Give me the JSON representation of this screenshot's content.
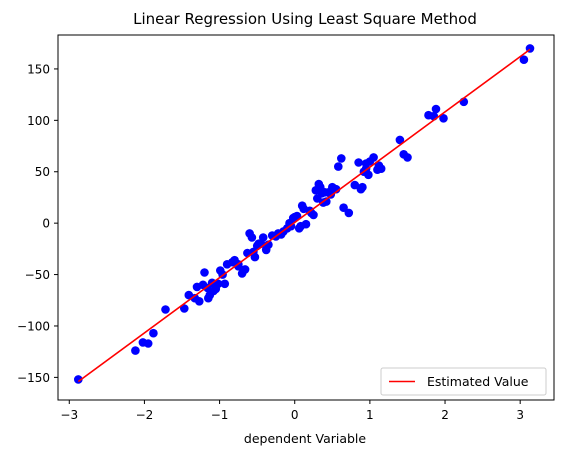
{
  "chart_data": {
    "type": "scatter",
    "title": "Linear Regression Using Least Square Method",
    "xlabel": "dependent Variable",
    "ylabel": "",
    "xlim": [
      -3.15,
      3.45
    ],
    "ylim": [
      -172,
      183
    ],
    "xticks": [
      -3,
      -2,
      -1,
      0,
      1,
      2,
      3
    ],
    "yticks": [
      -150,
      -100,
      -50,
      0,
      50,
      100,
      150
    ],
    "legend_position": "lower-right",
    "grid": false,
    "colors": {
      "points": "#0000ff",
      "line": "#ff0000"
    },
    "series": [
      {
        "kind": "points",
        "x": [
          -2.88,
          -2.12,
          -2.02,
          -1.95,
          -1.88,
          -1.72,
          -1.47,
          -1.41,
          -1.33,
          -1.3,
          -1.27,
          -1.22,
          -1.2,
          -1.16,
          -1.15,
          -1.13,
          -1.1,
          -1.08,
          -1.05,
          -1.02,
          -0.99,
          -0.96,
          -0.93,
          -0.9,
          -0.83,
          -0.8,
          -0.75,
          -0.7,
          -0.66,
          -0.63,
          -0.6,
          -0.57,
          -0.55,
          -0.53,
          -0.5,
          -0.48,
          -0.45,
          -0.42,
          -0.38,
          -0.35,
          -0.3,
          -0.25,
          -0.22,
          -0.18,
          -0.15,
          -0.1,
          -0.07,
          -0.05,
          -0.02,
          0.0,
          0.03,
          0.06,
          0.08,
          0.1,
          0.12,
          0.15,
          0.2,
          0.22,
          0.25,
          0.28,
          0.3,
          0.32,
          0.34,
          0.36,
          0.38,
          0.4,
          0.42,
          0.45,
          0.48,
          0.5,
          0.52,
          0.55,
          0.58,
          0.62,
          0.65,
          0.8,
          0.85,
          0.88,
          0.9,
          0.92,
          0.95,
          0.98,
          1.0,
          1.05,
          1.1,
          1.12,
          1.15,
          1.4,
          1.45,
          1.5,
          1.78,
          1.85,
          1.88,
          1.98,
          2.25,
          3.05,
          3.13,
          -0.75,
          0.72,
          0.95
        ],
        "y": [
          -152,
          -124,
          -116,
          -117,
          -107,
          -84,
          -83,
          -70,
          -73,
          -62,
          -76,
          -60,
          -48,
          -63,
          -73,
          -70,
          -58,
          -66,
          -64,
          -59,
          -46,
          -50,
          -59,
          -40,
          -38,
          -36,
          -42,
          -49,
          -45,
          -29,
          -10,
          -14,
          -28,
          -33,
          -22,
          -20,
          -20,
          -14,
          -26,
          -21,
          -12,
          -13,
          -10,
          -11,
          -8,
          -5,
          0,
          -3,
          5,
          6,
          7,
          -5,
          -3,
          17,
          14,
          -1,
          12,
          10,
          8,
          32,
          24,
          38,
          35,
          29,
          20,
          30,
          21,
          30,
          28,
          35,
          33,
          33,
          55,
          63,
          15,
          37,
          59,
          33,
          35,
          50,
          53,
          47,
          60,
          64,
          52,
          56,
          53,
          81,
          67,
          64,
          105,
          104,
          111,
          102,
          118,
          159,
          170,
          -40,
          10,
          58
        ]
      },
      {
        "kind": "line",
        "name": "Estimated Value",
        "x": [
          -2.88,
          3.13
        ],
        "y": [
          -154,
          169
        ]
      }
    ]
  }
}
